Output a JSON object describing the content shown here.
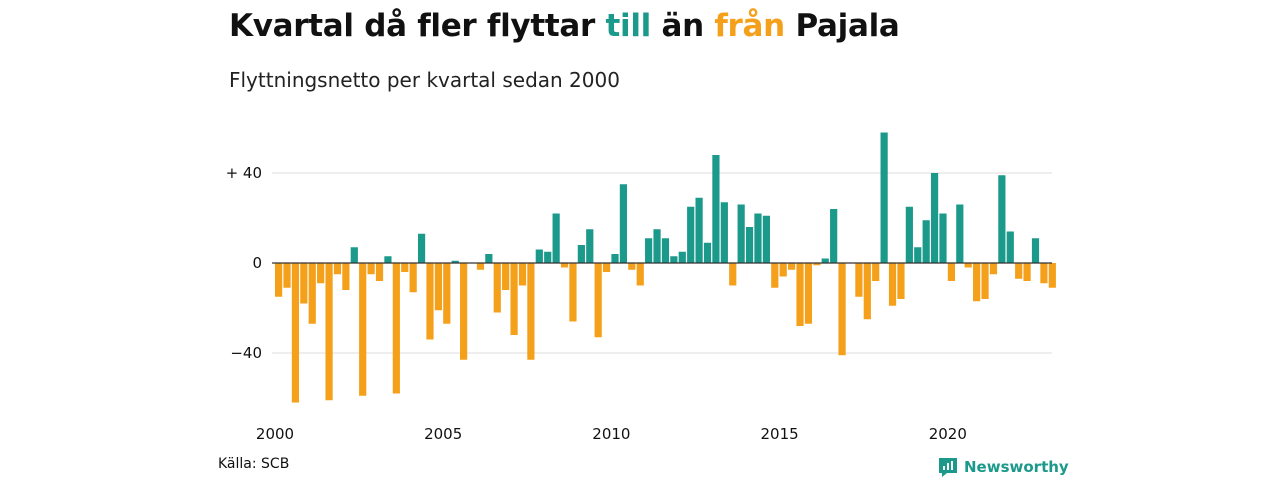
{
  "title": {
    "prefix": "Kvartal då fler flyttar",
    "till": "till",
    "middle": "än",
    "fran": "från",
    "suffix": "Pajala"
  },
  "subtitle": "Flyttningsnetto per kvartal sedan 2000",
  "source": "Källa: SCB",
  "brand": "Newsworthy",
  "colors": {
    "positive": "#1b998b",
    "negative": "#f5a01a",
    "grid": "#dddddd",
    "zero": "#333333"
  },
  "chart_data": {
    "type": "bar",
    "start_quarter": "2000 Q1",
    "ylim": [
      -62,
      58
    ],
    "grid": true,
    "yticks": [
      {
        "value": 40,
        "label": "+ 40"
      },
      {
        "value": 0,
        "label": "0"
      },
      {
        "value": -40,
        "label": "−40"
      }
    ],
    "xticks": [
      "2000",
      "2005",
      "2010",
      "2015",
      "2020"
    ],
    "values": [
      -15,
      -11,
      -62,
      -18,
      -27,
      -9,
      -61,
      -5,
      -12,
      7,
      -59,
      -5,
      -8,
      3,
      -58,
      -4,
      -13,
      13,
      -34,
      -21,
      -27,
      1,
      -43,
      0,
      -3,
      4,
      -22,
      -12,
      -32,
      -10,
      -43,
      6,
      5,
      22,
      -2,
      -26,
      8,
      15,
      -33,
      -4,
      4,
      35,
      -3,
      -10,
      11,
      15,
      11,
      3,
      5,
      25,
      29,
      9,
      48,
      27,
      -10,
      26,
      16,
      22,
      21,
      -11,
      -6,
      -3,
      -28,
      -27,
      -1,
      2,
      24,
      -41,
      0,
      -15,
      -25,
      -8,
      58,
      -19,
      -16,
      25,
      7,
      19,
      40,
      22,
      -8,
      26,
      -2,
      -17,
      -16,
      -5,
      39,
      14,
      -7,
      -8,
      11,
      -9,
      -11
    ]
  }
}
